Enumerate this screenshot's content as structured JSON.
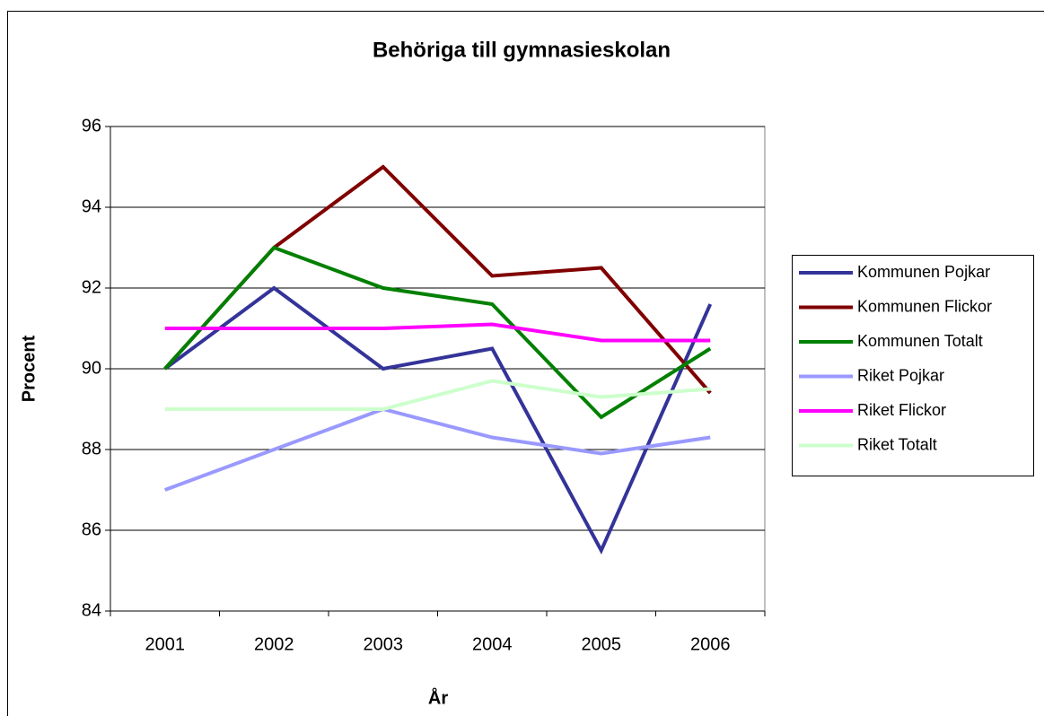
{
  "chart_data": {
    "type": "line",
    "title": "Behöriga till gymnasieskolan",
    "x_label": "År",
    "y_label": "Procent",
    "categories": [
      "2001",
      "2002",
      "2003",
      "2004",
      "2005",
      "2006"
    ],
    "series": [
      {
        "name": "Kommunen Pojkar",
        "color": "#333399",
        "values": [
          90,
          92,
          90,
          90.5,
          85.5,
          91.6
        ]
      },
      {
        "name": "Kommunen Flickor",
        "color": "#800000",
        "values": [
          90,
          93,
          95,
          92.3,
          92.5,
          89.4
        ]
      },
      {
        "name": "Kommunen Totalt",
        "color": "#008000",
        "values": [
          90,
          93,
          92,
          91.6,
          88.8,
          90.5
        ]
      },
      {
        "name": "Riket Pojkar",
        "color": "#9999ff",
        "values": [
          87,
          88,
          89,
          88.3,
          87.9,
          88.3
        ]
      },
      {
        "name": "Riket Flickor",
        "color": "#ff00ff",
        "values": [
          91,
          91,
          91,
          91.1,
          90.7,
          90.7
        ]
      },
      {
        "name": "Riket Totalt",
        "color": "#ccffcc",
        "values": [
          89,
          89,
          89,
          89.7,
          89.3,
          89.5
        ]
      }
    ],
    "ylim": [
      84,
      96
    ],
    "yticks": [
      84,
      86,
      88,
      90,
      92,
      94,
      96
    ],
    "grid": true,
    "legend": "right"
  }
}
